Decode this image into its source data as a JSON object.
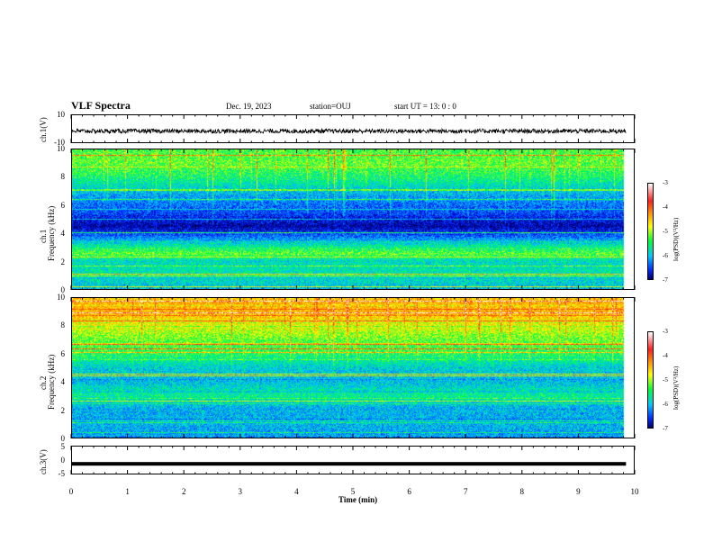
{
  "header": {
    "title": "VLF Spectra",
    "date": "Dec. 19, 2023",
    "station": "station=OUJ",
    "start": "start  UT =   13: 0  : 0"
  },
  "chart_data": [
    {
      "type": "line",
      "ylabel": "ch.1(V)",
      "ylim": [
        -10,
        10
      ],
      "yticks": [
        "10",
        "-10"
      ],
      "description_values": {
        "waveform_level": -1,
        "amplitude": 1.5
      }
    },
    {
      "type": "heatmap",
      "ylabel": "ch.1\nFrequency (kHz)",
      "ylabel_line1": "ch.1",
      "ylabel_line2": "Frequency (kHz)",
      "ylim": [
        0,
        10
      ],
      "yticks": [
        "10",
        "8",
        "6",
        "4",
        "2",
        "0"
      ],
      "colorbar": {
        "label": "log(PSD)(V²/Hz)",
        "ticks": [
          "-3",
          "-4",
          "-5",
          "-6",
          "-7"
        ],
        "range": [
          -7,
          -3
        ]
      },
      "band_profile_khz_to_logpsd": [
        [
          0,
          -5.8
        ],
        [
          1,
          -5.5
        ],
        [
          2,
          -5.6
        ],
        [
          2.5,
          -5.0
        ],
        [
          3,
          -5.4
        ],
        [
          4,
          -6.4
        ],
        [
          4.5,
          -6.8
        ],
        [
          5.5,
          -6.3
        ],
        [
          6.5,
          -6.0
        ],
        [
          8,
          -5.3
        ],
        [
          9,
          -5.0
        ],
        [
          10,
          -5.1
        ]
      ]
    },
    {
      "type": "heatmap",
      "ylabel": "ch.2\nFrequency (kHz)",
      "ylabel_line1": "ch.2",
      "ylabel_line2": "Frequency (kHz)",
      "ylim": [
        0,
        10
      ],
      "yticks": [
        "10",
        "8",
        "6",
        "4",
        "2",
        "0"
      ],
      "colorbar": {
        "label": "log(PSD)(V²/Hz)",
        "ticks": [
          "-3",
          "-4",
          "-5",
          "-6",
          "-7"
        ],
        "range": [
          -7,
          -3
        ]
      },
      "band_profile_khz_to_logpsd": [
        [
          0,
          -6.0
        ],
        [
          1,
          -5.8
        ],
        [
          2,
          -5.9
        ],
        [
          3,
          -5.4
        ],
        [
          4,
          -5.8
        ],
        [
          5,
          -5.7
        ],
        [
          6,
          -5.2
        ],
        [
          7,
          -5.0
        ],
        [
          8,
          -4.6
        ],
        [
          9,
          -4.2
        ],
        [
          10,
          -4.3
        ]
      ]
    },
    {
      "type": "line",
      "ylabel": "ch.3(V)",
      "ylim": [
        -5,
        5
      ],
      "yticks": [
        "5",
        "0",
        "-5"
      ],
      "description_values": {
        "constant_level": -1
      }
    }
  ],
  "xaxis": {
    "label": "Time  (min)",
    "range": [
      0,
      10
    ],
    "ticks": [
      "0",
      "1",
      "2",
      "3",
      "4",
      "5",
      "6",
      "7",
      "8",
      "9",
      "10"
    ],
    "data_end_min": 9.83
  },
  "colors": {
    "frame": "#000000",
    "background": "#ffffff"
  }
}
